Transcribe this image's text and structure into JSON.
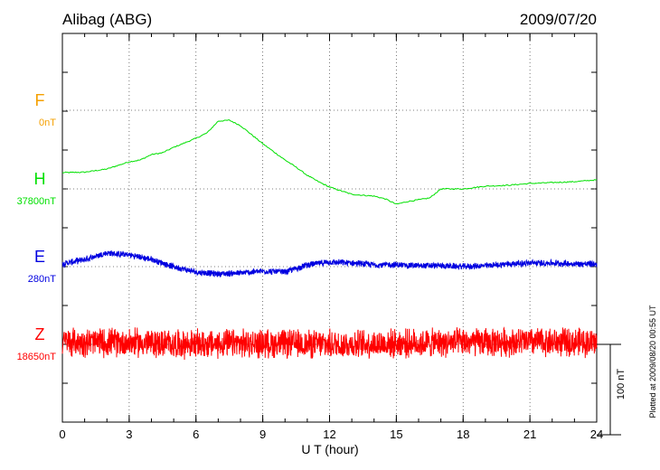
{
  "chart_data": {
    "type": "line",
    "title": "Alibag (ABG)",
    "date": "2009/07/20",
    "xlabel": "U T (hour)",
    "ylabel": "",
    "xlim": [
      0,
      24
    ],
    "x_ticks": [
      "0",
      "3",
      "6",
      "9",
      "12",
      "15",
      "18",
      "21",
      "24"
    ],
    "scale_bar": {
      "label": "100 nT",
      "value_nT": 100
    },
    "footer_note": "Plotted at 2009/08/20 00:55 UT",
    "grid": true,
    "series": [
      {
        "name": "F",
        "baseline_label": "0nT",
        "color": "#f5a000",
        "x": [],
        "values": []
      },
      {
        "name": "H",
        "baseline_label": "37800nT",
        "color": "#00e000",
        "x": [
          0,
          1,
          2,
          2.5,
          3,
          3.5,
          4,
          4.5,
          5,
          6,
          6.5,
          7,
          7.5,
          8,
          8.5,
          9,
          10,
          10.5,
          11,
          11.5,
          12,
          13,
          14,
          14.5,
          15,
          15.5,
          16,
          16.5,
          17,
          17.5,
          18,
          19,
          20,
          21,
          22,
          23,
          24
        ],
        "values": [
          18,
          18.5,
          22,
          26,
          30,
          32,
          38,
          40,
          46,
          56,
          62,
          75,
          76,
          70,
          60,
          50,
          32,
          24,
          15,
          8,
          2,
          -6,
          -8,
          -11,
          -17,
          -14,
          -12,
          -10,
          0,
          0,
          0,
          3,
          4,
          6,
          7,
          8,
          10
        ]
      },
      {
        "name": "E",
        "baseline_label": "280nT",
        "color": "#0000e0",
        "noise": 4,
        "x": [
          0,
          1,
          2,
          3,
          4,
          5,
          6,
          7,
          8,
          9,
          10,
          11,
          12,
          13,
          14,
          15,
          16,
          17,
          18,
          19,
          20,
          21,
          22,
          23,
          24
        ],
        "values": [
          3,
          8,
          15,
          13,
          8,
          0,
          -6,
          -8,
          -7,
          -5,
          -6,
          2,
          5,
          4,
          2,
          2,
          1,
          1,
          0,
          1,
          3,
          4,
          4,
          3,
          3
        ]
      },
      {
        "name": "Z",
        "baseline_label": "18650nT",
        "color": "#ff0000",
        "noise": 18,
        "x": [
          0,
          3,
          6,
          9,
          12,
          15,
          18,
          21,
          24
        ],
        "values": [
          3,
          2,
          0,
          1,
          0,
          1,
          2,
          3,
          2
        ]
      }
    ]
  }
}
